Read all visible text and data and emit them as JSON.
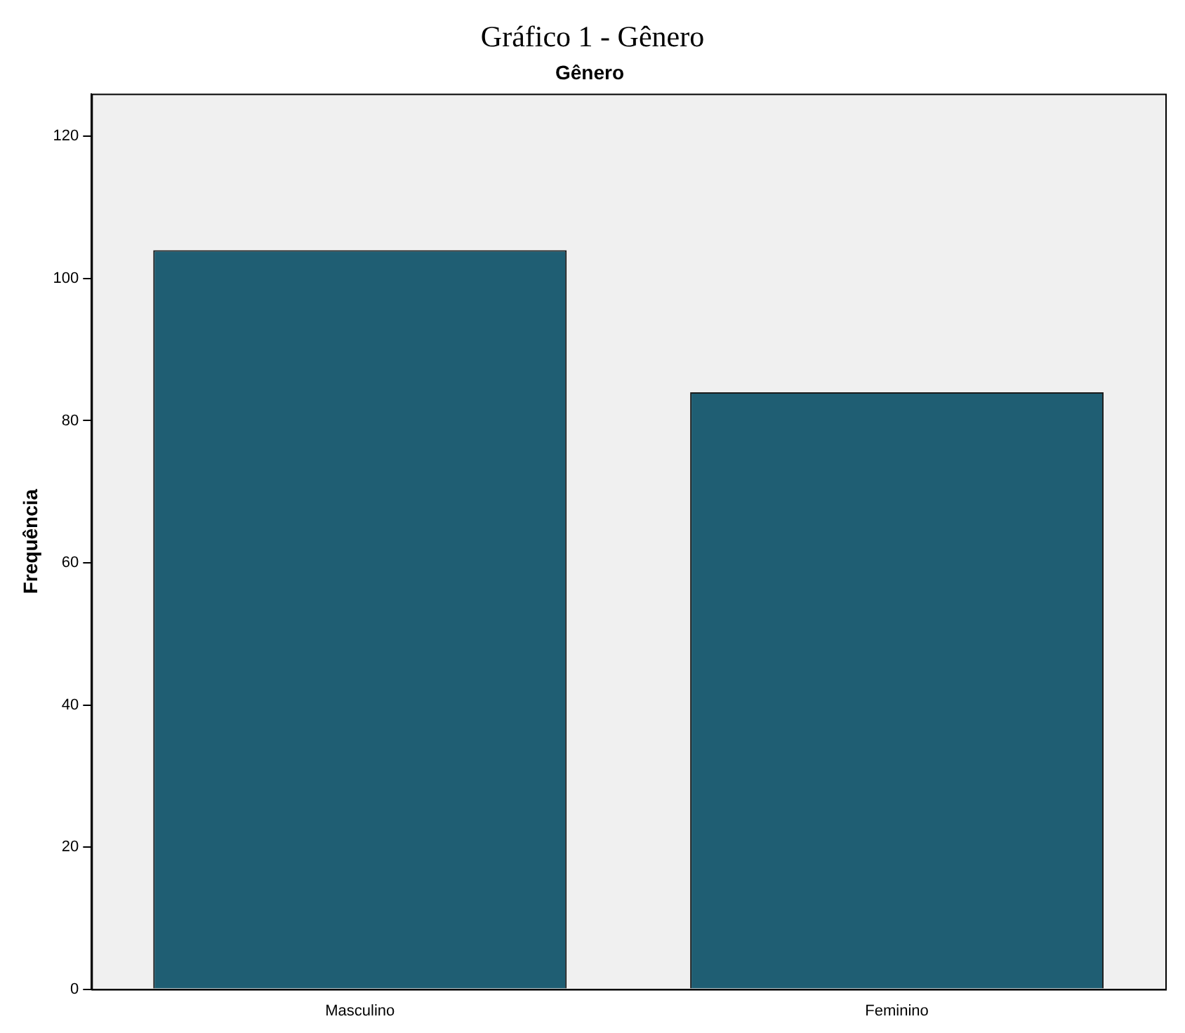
{
  "chart_data": {
    "type": "bar",
    "title": "Gráfico 1 - Gênero",
    "subtitle": "Gênero",
    "ylabel": "Frequência",
    "categories": [
      "Masculino",
      "Feminino"
    ],
    "values": [
      104,
      84
    ],
    "color": "#1f5e73",
    "ylim": [
      0,
      126
    ],
    "yticks": [
      0,
      20,
      40,
      60,
      80,
      100,
      120
    ],
    "grid": false,
    "legend": false
  }
}
